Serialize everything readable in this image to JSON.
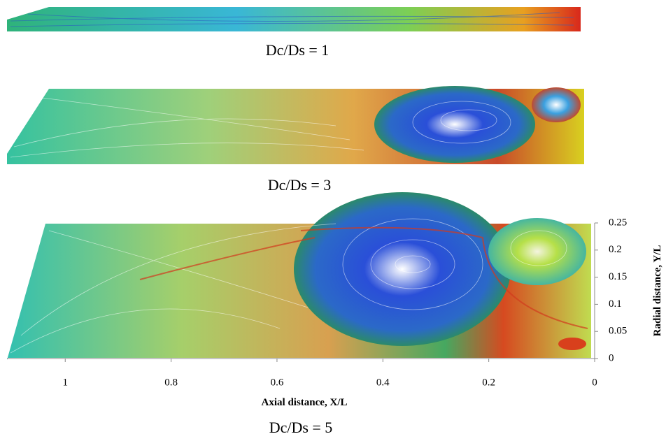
{
  "panels": [
    {
      "caption": "Dc/Ds = 1"
    },
    {
      "caption": "Dc/Ds = 3"
    }
  ],
  "chart_data": {
    "type": "streamline",
    "caption": "Dc/Ds = 5",
    "x_label": "Axial distance, X/L",
    "y_label": "Radial distance, Y/L",
    "xlim": [
      1.11,
      0
    ],
    "ylim": [
      0,
      0.25
    ],
    "xticks": [
      1,
      0.8,
      0.6,
      0.4,
      0.2,
      0
    ],
    "yticks": [
      0,
      0.05,
      0.1,
      0.15,
      0.2,
      0.25
    ]
  }
}
